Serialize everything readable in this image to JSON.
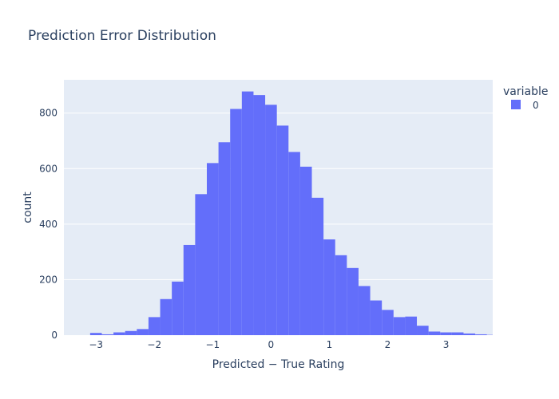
{
  "chart_data": {
    "type": "bar",
    "title": "Prediction Error Distribution",
    "xlabel": "Predicted − True Rating",
    "ylabel": "count",
    "xlim": [
      -3.55,
      3.8
    ],
    "ylim": [
      0,
      920
    ],
    "bin_width": 0.2,
    "bin_starts": [
      -3.1,
      -2.9,
      -2.7,
      -2.5,
      -2.3,
      -2.1,
      -1.9,
      -1.7,
      -1.5,
      -1.3,
      -1.1,
      -0.9,
      -0.7,
      -0.5,
      -0.3,
      -0.1,
      0.1,
      0.3,
      0.5,
      0.7,
      0.9,
      1.1,
      1.3,
      1.5,
      1.7,
      1.9,
      2.1,
      2.3,
      2.5,
      2.7,
      2.9,
      3.1,
      3.3,
      3.5,
      3.7
    ],
    "values": [
      8,
      3,
      10,
      15,
      22,
      65,
      130,
      193,
      325,
      508,
      620,
      695,
      815,
      878,
      865,
      830,
      755,
      660,
      607,
      495,
      345,
      288,
      242,
      177,
      125,
      91,
      65,
      67,
      34,
      13,
      10,
      10,
      6,
      3,
      1
    ],
    "x_ticks": [
      "−3",
      "−2",
      "−1",
      "0",
      "1",
      "2",
      "3"
    ],
    "x_tick_values": [
      -3,
      -2,
      -1,
      0,
      1,
      2,
      3
    ],
    "y_ticks": [
      "0",
      "200",
      "400",
      "600",
      "800"
    ],
    "y_tick_values": [
      0,
      200,
      400,
      600,
      800
    ],
    "grid": true,
    "legend": {
      "title": "variable",
      "placement": "top-right",
      "items": [
        {
          "name": "0",
          "color": "#636efa"
        }
      ]
    },
    "colors": {
      "bar": "#636efa",
      "plot_bg": "#e5ecf6",
      "grid": "#ffffff",
      "text": "#2a3f5f"
    }
  }
}
